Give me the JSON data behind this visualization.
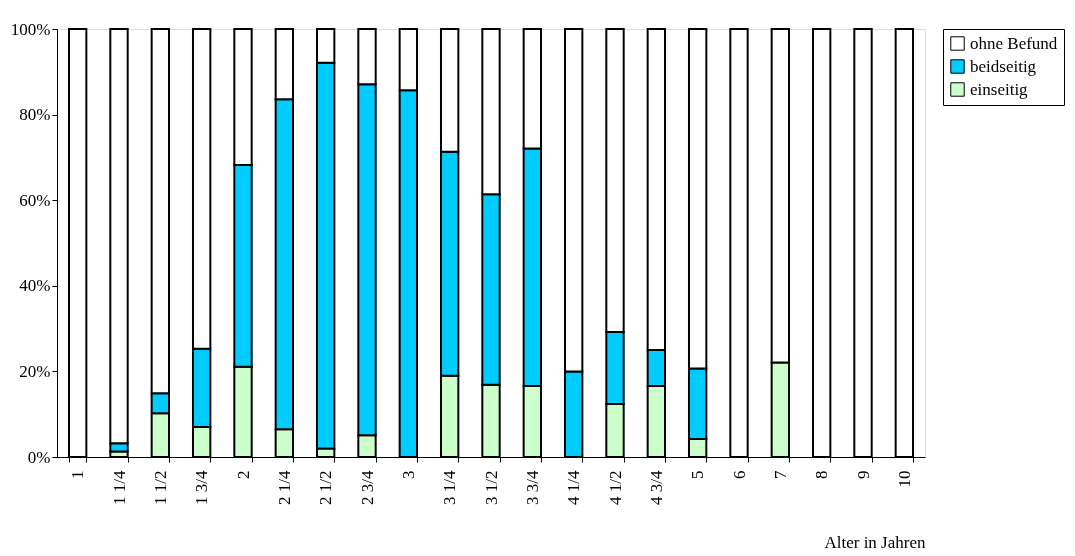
{
  "chart_data": {
    "type": "bar",
    "stacked": true,
    "xlabel": "Alter in Jahren",
    "categories": [
      "1",
      "1 1/4",
      "1 1/2",
      "1 3/4",
      "2",
      "2 1/4",
      "2 1/2",
      "2 3/4",
      "3",
      "3 1/4",
      "3 1/2",
      "3 3/4",
      "4 1/4",
      "4 1/2",
      "4 3/4",
      "5",
      "6",
      "7",
      "8",
      "9",
      "10"
    ],
    "series": [
      {
        "name": "einseitig",
        "color": "#ccffcc",
        "values": [
          0,
          1.3,
          10.2,
          7.0,
          21.1,
          6.5,
          2.0,
          5.1,
          0,
          19.0,
          16.9,
          16.6,
          0,
          12.4,
          16.6,
          4.2,
          0,
          22.1,
          0,
          0,
          0
        ]
      },
      {
        "name": "beidseitig",
        "color": "#00ccff",
        "values": [
          0,
          1.9,
          4.7,
          18.3,
          47.1,
          77.1,
          90.1,
          82.0,
          85.7,
          52.3,
          44.5,
          55.5,
          20.0,
          16.8,
          8.4,
          16.5,
          0,
          0,
          0,
          0,
          0
        ]
      },
      {
        "name": "ohne Befund",
        "color": "#ffffff",
        "values": [
          100,
          96.8,
          85.1,
          74.7,
          31.8,
          16.4,
          7.9,
          12.9,
          14.3,
          28.7,
          38.6,
          27.9,
          80.0,
          70.8,
          75.0,
          79.3,
          100,
          77.9,
          100,
          100,
          100
        ]
      }
    ],
    "ylim": [
      0,
      100
    ],
    "yticks": [
      {
        "value": 0,
        "label": "0%"
      },
      {
        "value": 20,
        "label": "20%"
      },
      {
        "value": 40,
        "label": "40%"
      },
      {
        "value": 60,
        "label": "60%"
      },
      {
        "value": 80,
        "label": "80%"
      },
      {
        "value": 100,
        "label": "100%"
      }
    ],
    "grid": false,
    "legend": "top right"
  }
}
